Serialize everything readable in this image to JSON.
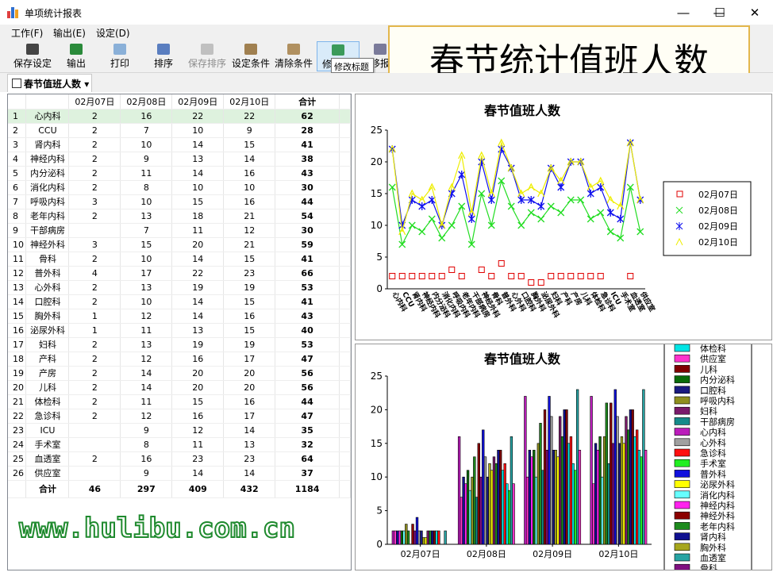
{
  "window": {
    "title": "单项统计报表",
    "minimize": "—",
    "maximize": "☐",
    "close": "✕"
  },
  "menu": [
    "工作(F)",
    "输出(E)",
    "设定(D)"
  ],
  "toolbar": [
    {
      "label": "保存设定",
      "icon": "save-settings-icon",
      "enabled": true
    },
    {
      "label": "输出",
      "icon": "excel-export-icon",
      "enabled": true
    },
    {
      "label": "打印",
      "icon": "printer-icon",
      "enabled": true
    },
    {
      "label": "排序",
      "icon": "sort-az-icon",
      "enabled": true
    },
    {
      "label": "保存排序",
      "icon": "save-sort-icon",
      "enabled": false
    },
    {
      "label": "设定条件",
      "icon": "set-condition-icon",
      "enabled": true
    },
    {
      "label": "清除条件",
      "icon": "clear-condition-icon",
      "enabled": true
    },
    {
      "label": "修",
      "icon": "edit-title-icon",
      "enabled": true
    },
    {
      "label": "移报",
      "icon": "move-report-icon",
      "enabled": true
    }
  ],
  "tooltip": "修改标题",
  "banner": "春节统计值班人数",
  "tab": {
    "label": "春节值班人数"
  },
  "grid": {
    "headers": [
      "",
      "",
      "02月07日",
      "02月08日",
      "02月09日",
      "02月10日",
      "合计"
    ],
    "rows": [
      [
        "1",
        "心内科",
        "2",
        "16",
        "22",
        "22",
        "62"
      ],
      [
        "2",
        "CCU",
        "2",
        "7",
        "10",
        "9",
        "28"
      ],
      [
        "3",
        "肾内科",
        "2",
        "10",
        "14",
        "15",
        "41"
      ],
      [
        "4",
        "神经内科",
        "2",
        "9",
        "13",
        "14",
        "38"
      ],
      [
        "5",
        "内分泌科",
        "2",
        "11",
        "14",
        "16",
        "43"
      ],
      [
        "6",
        "消化内科",
        "2",
        "8",
        "10",
        "10",
        "30"
      ],
      [
        "7",
        "呼吸内科",
        "3",
        "10",
        "15",
        "16",
        "44"
      ],
      [
        "8",
        "老年内科",
        "2",
        "13",
        "18",
        "21",
        "54"
      ],
      [
        "9",
        "干部病房",
        "",
        "7",
        "11",
        "12",
        "30"
      ],
      [
        "10",
        "神经外科",
        "3",
        "15",
        "20",
        "21",
        "59"
      ],
      [
        "11",
        "骨科",
        "2",
        "10",
        "14",
        "15",
        "41"
      ],
      [
        "12",
        "普外科",
        "4",
        "17",
        "22",
        "23",
        "66"
      ],
      [
        "13",
        "心外科",
        "2",
        "13",
        "19",
        "19",
        "53"
      ],
      [
        "14",
        "口腔科",
        "2",
        "10",
        "14",
        "15",
        "41"
      ],
      [
        "15",
        "胸外科",
        "1",
        "12",
        "14",
        "16",
        "43"
      ],
      [
        "16",
        "泌尿外科",
        "1",
        "11",
        "13",
        "15",
        "40"
      ],
      [
        "17",
        "妇科",
        "2",
        "13",
        "19",
        "19",
        "53"
      ],
      [
        "18",
        "产科",
        "2",
        "12",
        "16",
        "17",
        "47"
      ],
      [
        "19",
        "产房",
        "2",
        "14",
        "20",
        "20",
        "56"
      ],
      [
        "20",
        "儿科",
        "2",
        "14",
        "20",
        "20",
        "56"
      ],
      [
        "21",
        "体检科",
        "2",
        "11",
        "15",
        "16",
        "44"
      ],
      [
        "22",
        "急诊科",
        "2",
        "12",
        "16",
        "17",
        "47"
      ],
      [
        "23",
        "ICU",
        "",
        "9",
        "12",
        "14",
        "35"
      ],
      [
        "24",
        "手术室",
        "",
        "8",
        "11",
        "13",
        "32"
      ],
      [
        "25",
        "血透室",
        "2",
        "16",
        "23",
        "23",
        "64"
      ],
      [
        "26",
        "供应室",
        "",
        "9",
        "14",
        "14",
        "37"
      ]
    ],
    "totals": [
      "",
      "合计",
      "46",
      "297",
      "409",
      "432",
      "1184"
    ]
  },
  "watermark": "www.hulibu.com.cn",
  "chart_data": [
    {
      "type": "line",
      "title": "春节值班人数",
      "ylim": [
        0,
        25
      ],
      "yticks": [
        0,
        5,
        10,
        15,
        20,
        25
      ],
      "legend_position": "right",
      "categories": [
        "心内科",
        "CCU",
        "肾内科",
        "神经内科",
        "内分泌科",
        "消化内科",
        "呼吸内科",
        "老年内科",
        "干部病房",
        "神经外科",
        "骨科",
        "普外科",
        "心外科",
        "口腔科",
        "胸外科",
        "泌尿外科",
        "妇科",
        "产科",
        "产房",
        "儿科",
        "体检科",
        "急诊科",
        "ICU",
        "手术室",
        "血透室",
        "供应室"
      ],
      "series": [
        {
          "name": "02月07日",
          "marker": "square",
          "color": "#e00000",
          "values": [
            2,
            2,
            2,
            2,
            2,
            2,
            3,
            2,
            null,
            3,
            2,
            4,
            2,
            2,
            1,
            1,
            2,
            2,
            2,
            2,
            2,
            2,
            null,
            null,
            2,
            null
          ]
        },
        {
          "name": "02月08日",
          "marker": "x",
          "color": "#22dd22",
          "values": [
            16,
            7,
            10,
            9,
            11,
            8,
            10,
            13,
            7,
            15,
            10,
            17,
            13,
            10,
            12,
            11,
            13,
            12,
            14,
            14,
            11,
            12,
            9,
            8,
            16,
            9
          ]
        },
        {
          "name": "02月09日",
          "marker": "star",
          "color": "#1010ee",
          "values": [
            22,
            10,
            14,
            13,
            14,
            10,
            15,
            18,
            11,
            20,
            14,
            22,
            19,
            14,
            14,
            13,
            19,
            16,
            20,
            20,
            15,
            16,
            12,
            11,
            23,
            14
          ]
        },
        {
          "name": "02月10日",
          "marker": "triangle",
          "color": "#eeee00",
          "values": [
            22,
            9,
            15,
            14,
            16,
            10,
            16,
            21,
            12,
            21,
            15,
            23,
            19,
            15,
            16,
            15,
            19,
            17,
            20,
            20,
            16,
            17,
            14,
            13,
            23,
            14
          ]
        }
      ]
    },
    {
      "type": "bar",
      "title": "春节值班人数",
      "ylim": [
        0,
        25
      ],
      "yticks": [
        0,
        5,
        10,
        15,
        20,
        25
      ],
      "legend_position": "right",
      "categories": [
        "02月07日",
        "02月08日",
        "02月09日",
        "02月10日"
      ],
      "series_names": [
        "心内科",
        "CCU",
        "肾内科",
        "神经内科",
        "内分泌科",
        "消化内科",
        "呼吸内科",
        "老年内科",
        "干部病房",
        "神经外科",
        "骨科",
        "普外科",
        "心外科",
        "口腔科",
        "胸外科",
        "泌尿外科",
        "妇科",
        "产科",
        "产房",
        "儿科",
        "体检科",
        "急诊科",
        "ICU",
        "手术室",
        "血透室",
        "供应室"
      ],
      "legend_visible": [
        "体检科",
        "供应室",
        "儿科",
        "内分泌科",
        "口腔科",
        "呼吸内科",
        "妇科",
        "干部病房",
        "心内科",
        "心外科",
        "急诊科",
        "手术室",
        "普外科",
        "泌尿外科",
        "消化内科",
        "神经内科",
        "神经外科",
        "老年内科",
        "肾内科",
        "胸外科",
        "血透室",
        "骨科"
      ],
      "legend_colors": {
        "体检科": "#00e5e5",
        "供应室": "#ff33cc",
        "儿科": "#800000",
        "内分泌科": "#0a6b0a",
        "口腔科": "#1a1a80",
        "呼吸内科": "#8f8f1f",
        "妇科": "#7a1a6a",
        "干部病房": "#168a8a",
        "心内科": "#bb1dbb",
        "心外科": "#a0a0a0",
        "急诊科": "#ff1010",
        "手术室": "#22ee22",
        "普外科": "#1010dd",
        "泌尿外科": "#ffff00",
        "消化内科": "#66ffff",
        "神经内科": "#ff22ee",
        "神经外科": "#8b0000",
        "老年内科": "#1e8b1e",
        "肾内科": "#101090",
        "胸外科": "#a6a61c",
        "血透室": "#27a3a3",
        "骨科": "#801080"
      }
    }
  ]
}
